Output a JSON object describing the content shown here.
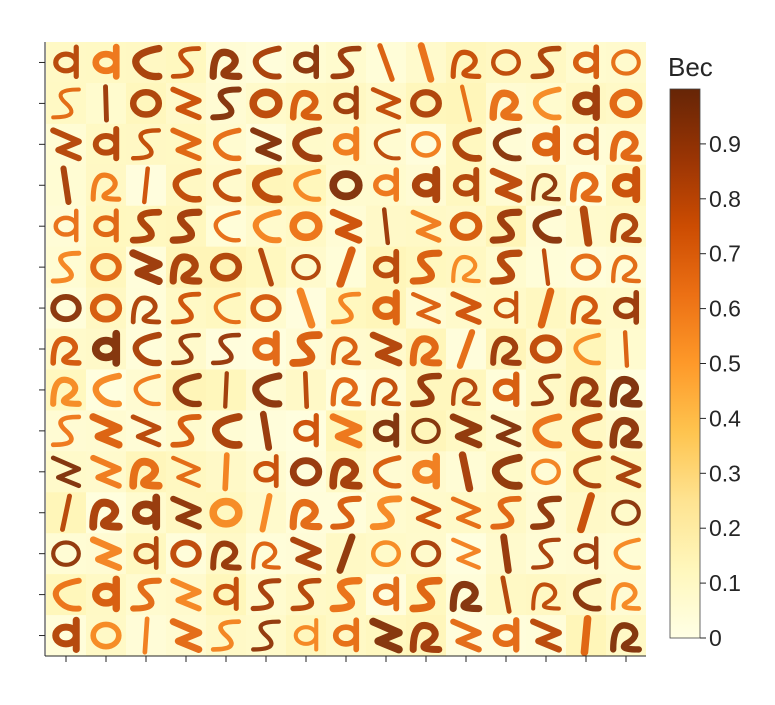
{
  "chart_data": {
    "type": "heatmap",
    "title": "",
    "xlabel": "",
    "ylabel": "",
    "grid": false,
    "description_of_cells": "15x15 grid of small weight-map tiles",
    "rows": 15,
    "cols": 15,
    "colorbar": {
      "label": "Вес",
      "range": [
        0,
        1
      ],
      "ticks": [
        0,
        0.1,
        0.2,
        0.3,
        0.4,
        0.5,
        0.6,
        0.7,
        0.8,
        0.9
      ],
      "tick_labels": [
        "0",
        "0.1",
        "0.2",
        "0.3",
        "0.4",
        "0.5",
        "0.6",
        "0.7",
        "0.8",
        "0.9"
      ],
      "colormap": "YlOrBr",
      "colors": [
        "#ffffe5",
        "#fff7bc",
        "#fee391",
        "#fec44f",
        "#fe9929",
        "#ec7014",
        "#cc4c02",
        "#993404",
        "#662506"
      ]
    }
  }
}
